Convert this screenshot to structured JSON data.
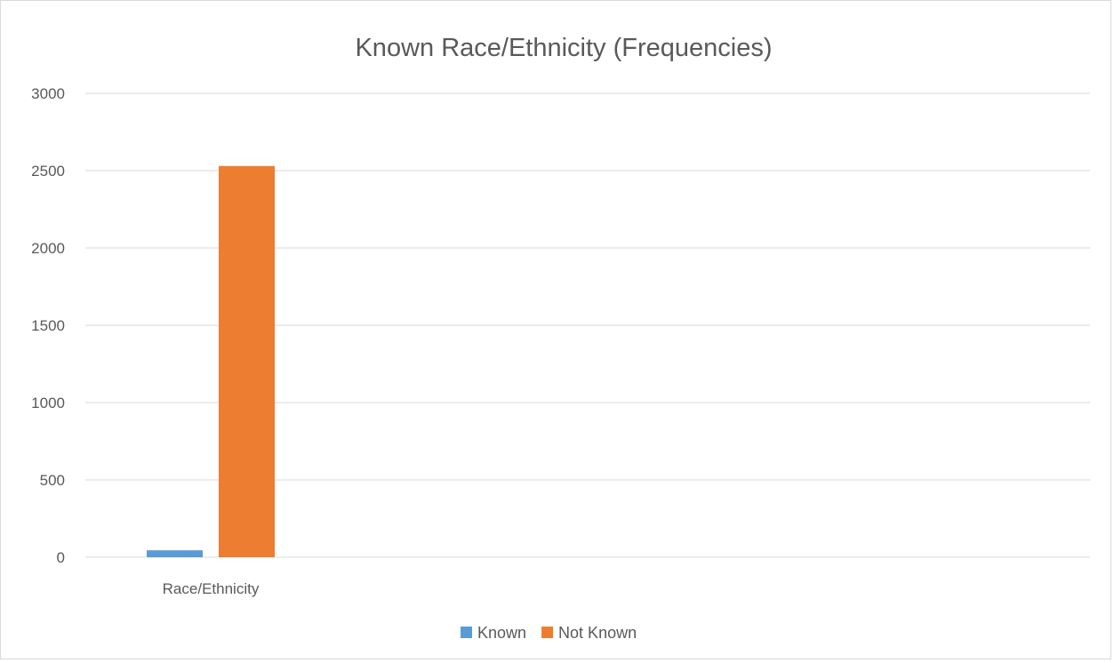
{
  "chart_data": {
    "type": "bar",
    "title": "Known Race/Ethnicity (Frequencies)",
    "xlabel": "",
    "ylabel": "",
    "categories": [
      "Race/Ethnicity"
    ],
    "series": [
      {
        "name": "Known",
        "values": [
          45
        ],
        "color": "#5b9bd5"
      },
      {
        "name": "Not Known",
        "values": [
          2530
        ],
        "color": "#ed7d31"
      }
    ],
    "ylim": [
      0,
      3000
    ],
    "yticks": [
      "0",
      "500",
      "1000",
      "1500",
      "2000",
      "2500",
      "3000"
    ],
    "grid": true,
    "legend_position": "bottom"
  }
}
